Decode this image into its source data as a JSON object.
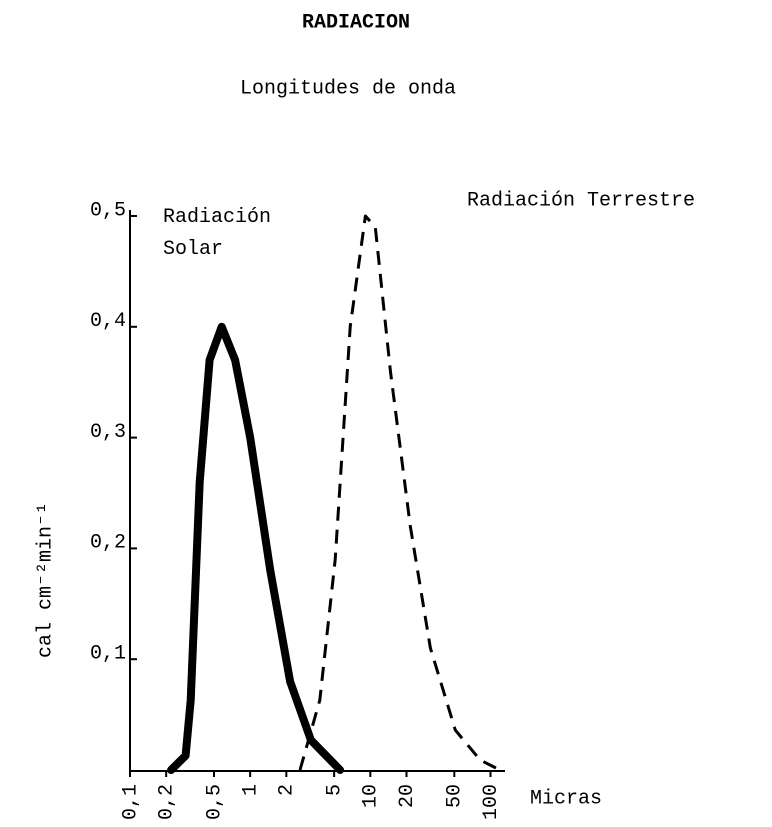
{
  "chart_data": {
    "type": "line",
    "title": "RADIACION",
    "subtitle": "Longitudes de onda",
    "x_label": "Micras",
    "y_label": "cal cm⁻²min⁻¹",
    "log_x": true,
    "xlim": [
      0.1,
      120
    ],
    "xticks": [
      {
        "value": 0.1,
        "label": "0,1"
      },
      {
        "value": 0.2,
        "label": "0,2"
      },
      {
        "value": 0.5,
        "label": "0,5"
      },
      1,
      2,
      5,
      10,
      20,
      50,
      100
    ],
    "ylim": [
      0,
      0.5
    ],
    "yticks": [
      {
        "value": 0.1,
        "label": "0,1"
      },
      {
        "value": 0.2,
        "label": "0,2"
      },
      {
        "value": 0.3,
        "label": "0,3"
      },
      {
        "value": 0.4,
        "label": "0,4"
      },
      {
        "value": 0.5,
        "label": "0,5"
      }
    ],
    "series": [
      {
        "name": "Radiación Solar",
        "color": "#000000",
        "dashed": false,
        "x": [
          0.22,
          0.29,
          0.32,
          0.38,
          0.46,
          0.58,
          0.75,
          1.0,
          1.47,
          2.15,
          3.2,
          5.6
        ],
        "values": [
          0,
          0.013,
          0.063,
          0.26,
          0.37,
          0.4,
          0.37,
          0.3,
          0.18,
          0.08,
          0.027,
          0
        ]
      },
      {
        "name": "Radiación Terrestre",
        "color": "#000000",
        "dashed": true,
        "x": [
          2.6,
          3.8,
          5.1,
          6.8,
          9.1,
          11,
          14.7,
          21.5,
          31.6,
          51,
          82,
          120
        ],
        "values": [
          0,
          0.063,
          0.19,
          0.4,
          0.5,
          0.49,
          0.36,
          0.22,
          0.11,
          0.036,
          0.009,
          0
        ]
      }
    ]
  }
}
